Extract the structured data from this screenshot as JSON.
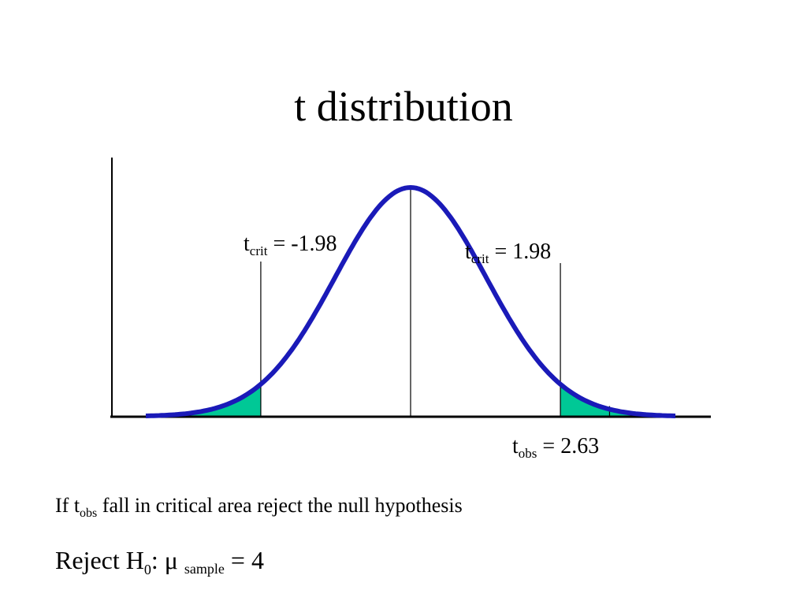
{
  "title": "t distribution",
  "colors": {
    "curve": "#1a1ab8",
    "rejection_fill": "#00c896",
    "axis": "#000000",
    "marker": "#000000"
  },
  "labels": {
    "tcrit_left": {
      "main": "t",
      "sub": "crit",
      "rest": " = -1.98"
    },
    "tcrit_right": {
      "main": "t",
      "sub": "crit",
      "rest": " = 1.98"
    },
    "tobs": {
      "main": "t",
      "sub": "obs",
      "rest": " = 2.63"
    }
  },
  "note": {
    "pre": "If t",
    "sub": "obs",
    "post": " fall in critical area reject the null hypothesis"
  },
  "reject": {
    "pre": "Reject H",
    "sub": "0",
    "mid": ": μ ",
    "small": "sample",
    "post": " = 4"
  },
  "chart_data": {
    "type": "area",
    "distribution": "t",
    "x_range": [
      -3.5,
      3.5
    ],
    "t_critical": [
      -1.98,
      1.98
    ],
    "t_observed": 2.63,
    "center": 0
  }
}
